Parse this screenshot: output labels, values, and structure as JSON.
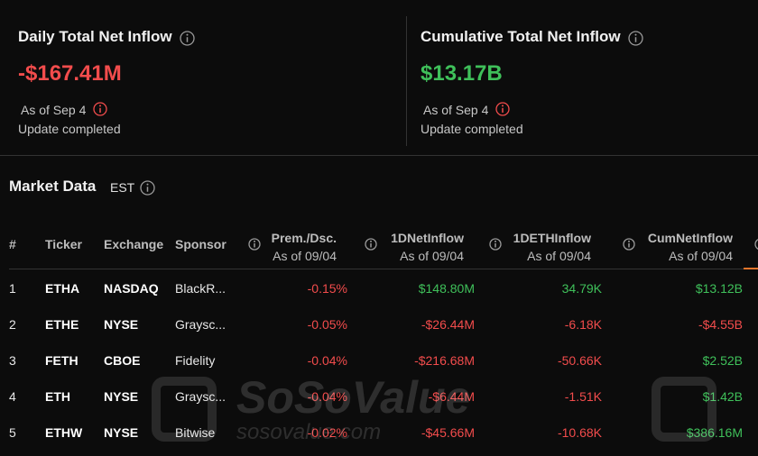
{
  "summary": [
    {
      "title": "Daily Total Net Inflow",
      "value": "-$167.41M",
      "as_of": "As of Sep 4",
      "status": "Update completed",
      "color": "#f24c4c"
    },
    {
      "title": "Cumulative Total Net Inflow",
      "value": "$13.17B",
      "as_of": "As of Sep 4",
      "status": "Update completed",
      "color": "#3fc05a"
    }
  ],
  "market": {
    "title": "Market Data",
    "zone": "EST"
  },
  "table": {
    "columns": [
      {
        "label": "#"
      },
      {
        "label": "Ticker"
      },
      {
        "label": "Exchange"
      },
      {
        "label": "Sponsor"
      },
      {
        "label": "Prem./Dsc.",
        "sub": "As of 09/04"
      },
      {
        "label": "1DNetInflow",
        "sub": "As of 09/04"
      },
      {
        "label": "1DETHInflow",
        "sub": "As of 09/04"
      },
      {
        "label": "CumNetInflow",
        "sub": "As of 09/04"
      }
    ],
    "rows": [
      [
        "1",
        "ETHA",
        "NASDAQ",
        "BlackR...",
        "-0.15%",
        "$148.80M",
        "34.79K",
        "$13.12B"
      ],
      [
        "2",
        "ETHE",
        "NYSE",
        "Graysc...",
        "-0.05%",
        "-$26.44M",
        "-6.18K",
        "-$4.55B"
      ],
      [
        "3",
        "FETH",
        "CBOE",
        "Fidelity",
        "-0.04%",
        "-$216.68M",
        "-50.66K",
        "$2.52B"
      ],
      [
        "4",
        "ETH",
        "NYSE",
        "Graysc...",
        "-0.04%",
        "-$6.44M",
        "-1.51K",
        "$1.42B"
      ],
      [
        "5",
        "ETHW",
        "NYSE",
        "Bitwise",
        "-0.02%",
        "-$45.66M",
        "-10.68K",
        "$386.16M"
      ]
    ]
  },
  "watermark": {
    "brand": "SoSoValue",
    "url": "sosovalue.com"
  }
}
